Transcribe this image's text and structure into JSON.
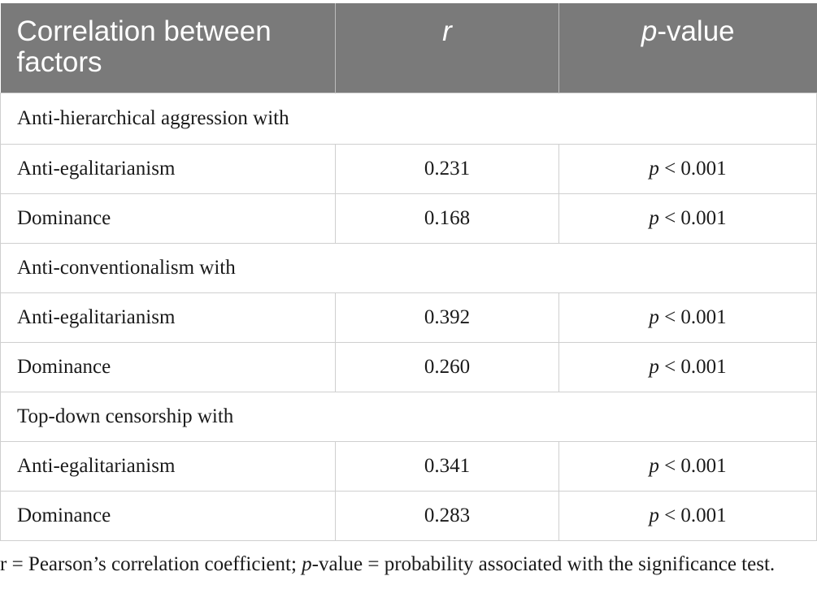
{
  "table": {
    "headers": {
      "col1": "Correlation between factors",
      "col2": "r",
      "col3_italic": "p",
      "col3_rest": "-value"
    },
    "groups": [
      {
        "label": "Anti-hierarchical aggression with",
        "rows": [
          {
            "factor": "Anti-egalitarianism",
            "r": "0.231",
            "p_italic": "p",
            "p_rest": " < 0.001"
          },
          {
            "factor": "Dominance",
            "r": "0.168",
            "p_italic": "p",
            "p_rest": " < 0.001"
          }
        ]
      },
      {
        "label": "Anti-conventionalism with",
        "rows": [
          {
            "factor": "Anti-egalitarianism",
            "r": "0.392",
            "p_italic": "p",
            "p_rest": " < 0.001"
          },
          {
            "factor": "Dominance",
            "r": "0.260",
            "p_italic": "p",
            "p_rest": " < 0.001"
          }
        ]
      },
      {
        "label": "Top-down censorship with",
        "rows": [
          {
            "factor": "Anti-egalitarianism",
            "r": "0.341",
            "p_italic": "p",
            "p_rest": " < 0.001"
          },
          {
            "factor": "Dominance",
            "r": "0.283",
            "p_italic": "p",
            "p_rest": " < 0.001"
          }
        ]
      }
    ]
  },
  "footnote": {
    "part1": "r = Pearson’s correlation coefficient; ",
    "part2_italic": "p",
    "part3": "-value = probability associated with the significance test."
  },
  "colors": {
    "header_bg": "#7a7a7a",
    "header_text": "#ffffff",
    "border": "#cfcfcf"
  }
}
